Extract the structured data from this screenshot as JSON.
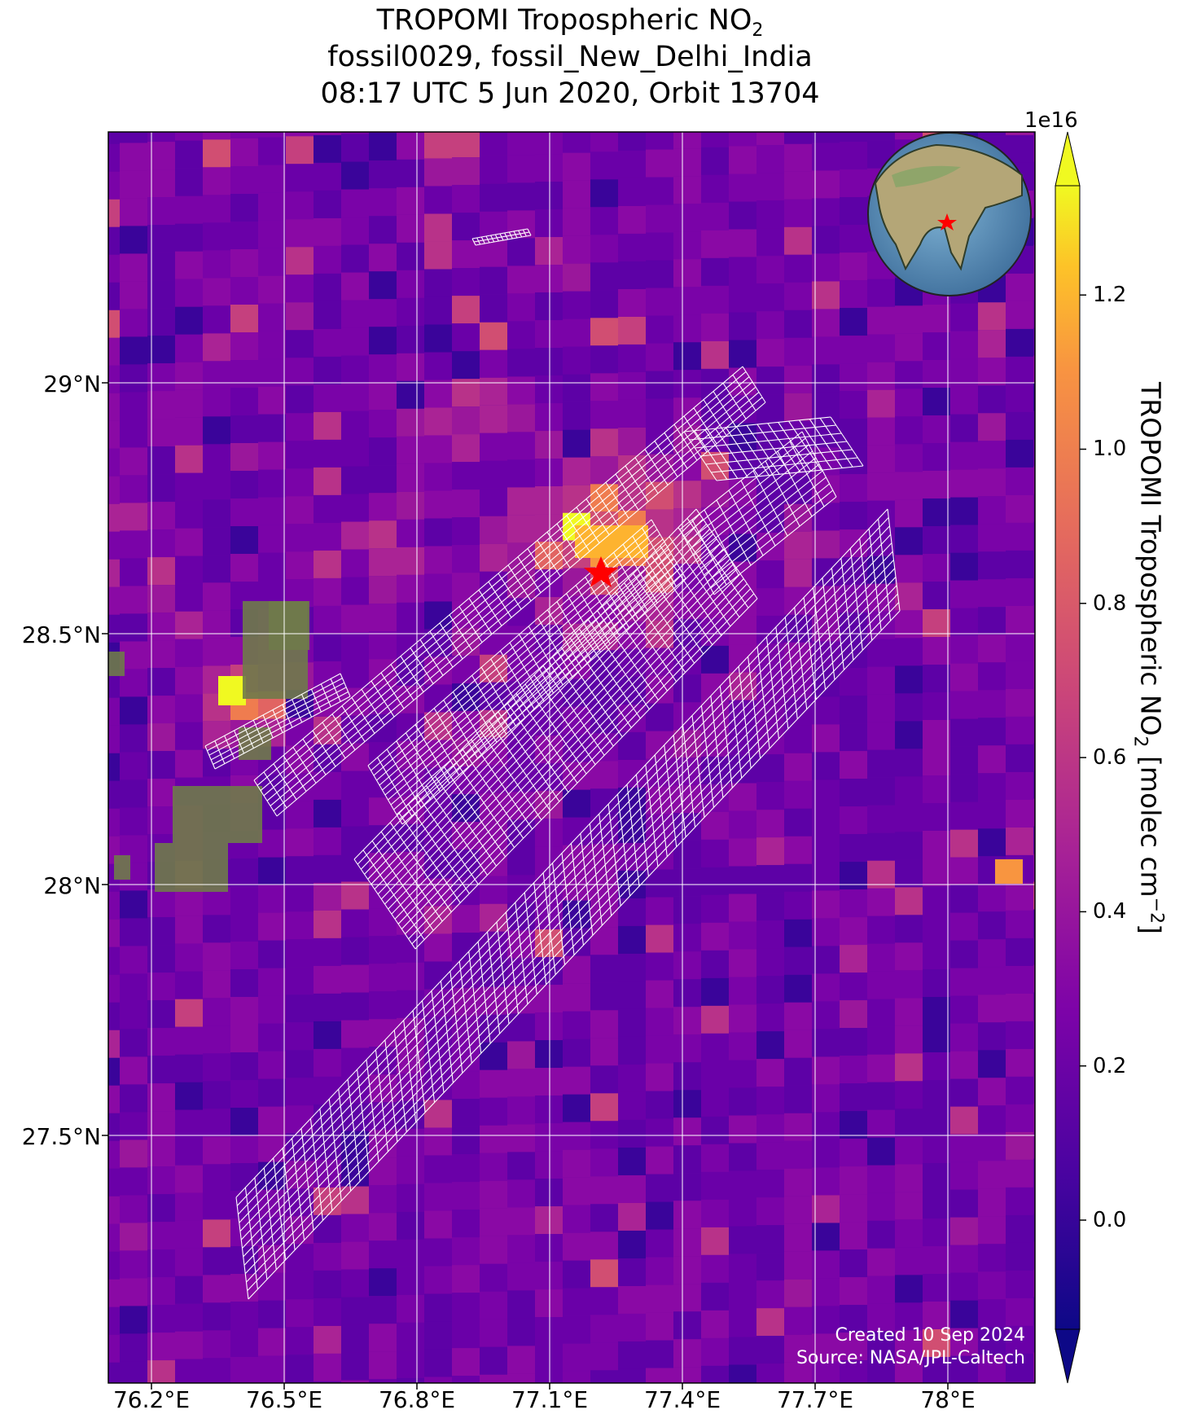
{
  "header": {
    "line1": "TROPOMI Tropospheric NO",
    "line1_sub": "2",
    "line2": "fossil0029, fossil_New_Delhi_India",
    "line3": "08:17 UTC 5 Jun 2020, Orbit 13704"
  },
  "map": {
    "lat_ticks": [
      "29°N",
      "28.5°N",
      "28°N",
      "27.5°N"
    ],
    "lon_ticks": [
      "76.2°E",
      "76.5°E",
      "76.8°E",
      "77.1°E",
      "77.4°E",
      "77.7°E",
      "78°E"
    ],
    "lat_values": [
      29.0,
      28.5,
      28.0,
      27.5
    ],
    "lon_values": [
      76.2,
      76.5,
      76.8,
      77.1,
      77.4,
      77.7,
      78.0
    ],
    "site_marker": "red-star",
    "inset": "globe-icon",
    "footer_line1": "Created 10 Sep 2024",
    "footer_line2": "Source: NASA/JPL-Caltech"
  },
  "colorbar": {
    "exponent": "1e16",
    "ticks": [
      "1.2",
      "1.0",
      "0.8",
      "0.6",
      "0.4",
      "0.2",
      "0.0"
    ],
    "tick_values": [
      1.2,
      1.0,
      0.8,
      0.6,
      0.4,
      0.2,
      0.0
    ],
    "label_main": "TROPOMI Tropospheric NO",
    "label_sub": "2",
    "label_units": " [molec cm",
    "label_sup": "−2",
    "label_close": "]",
    "colormap": "plasma",
    "extend": "both"
  },
  "colors": {
    "background_low": "#5c07a0",
    "background_mid": "#7a0ba8",
    "high": "#fdb32f",
    "max": "#f0f921",
    "min": "#0d0887",
    "grid": "#ffffff",
    "marker": "#ff0000"
  }
}
